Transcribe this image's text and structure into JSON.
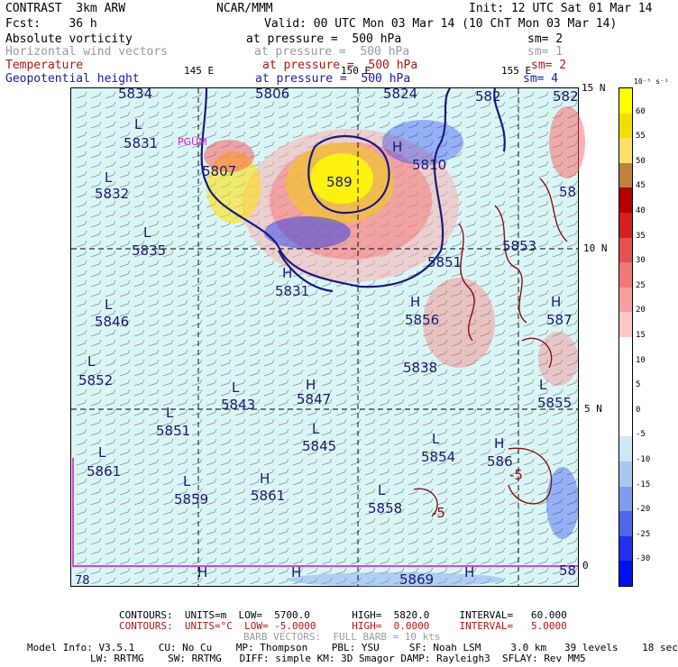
{
  "header": {
    "product": "CONTRAST  3km ARW",
    "fcst": "Fcst:    36 h",
    "center": "NCAR/MMM",
    "init": "Init: 12 UTC Sat 01 Mar 14",
    "valid": "Valid: 00 UTC Mon 03 Mar 14 (10 ChT Mon 03 Mar 14)"
  },
  "fields": [
    {
      "name": "Absolute vorticity",
      "level": "at pressure =  500 hPa",
      "smooth": "sm= 2",
      "color": "#000000"
    },
    {
      "name": "Horizontal wind vectors",
      "level": "at pressure =  500 hPa",
      "smooth": "sm= 1",
      "color": "#9a9a9a"
    },
    {
      "name": "Temperature",
      "level": "at pressure =  500 hPa",
      "smooth": "sm= 2",
      "color": "#b01515"
    },
    {
      "name": "Geopotential height",
      "level": "at pressure =  500 hPa",
      "smooth": "sm= 4",
      "color": "#1a1aa6"
    }
  ],
  "map": {
    "lon_labels": [
      "145 E",
      "150 E",
      "155 E"
    ],
    "lat_labels": [
      "15 N",
      "10 N",
      "5 N",
      "0"
    ],
    "corner_label": "78",
    "place_label": "PGUM",
    "geo_labels": [
      {
        "text": "5834"
      },
      {
        "text": "L"
      },
      {
        "text": "5831"
      },
      {
        "text": "L"
      },
      {
        "text": "5832"
      },
      {
        "text": "5807"
      },
      {
        "text": "L"
      },
      {
        "text": "5835"
      },
      {
        "text": "L"
      },
      {
        "text": "5846"
      },
      {
        "text": "L"
      },
      {
        "text": "5852"
      },
      {
        "text": "L"
      },
      {
        "text": "5843"
      },
      {
        "text": "H"
      },
      {
        "text": "5847"
      },
      {
        "text": "L"
      },
      {
        "text": "5851"
      },
      {
        "text": "L"
      },
      {
        "text": "5845"
      },
      {
        "text": "L"
      },
      {
        "text": "5861"
      },
      {
        "text": "L"
      },
      {
        "text": "5859"
      },
      {
        "text": "H"
      },
      {
        "text": "5861"
      },
      {
        "text": "L"
      },
      {
        "text": "5858"
      },
      {
        "text": "L"
      },
      {
        "text": "5854"
      },
      {
        "text": "H"
      },
      {
        "text": "586"
      },
      {
        "text": "H"
      },
      {
        "text": "5831"
      },
      {
        "text": "5806"
      },
      {
        "text": "5824"
      },
      {
        "text": "582"
      },
      {
        "text": "H"
      },
      {
        "text": "5810"
      },
      {
        "text": "589"
      },
      {
        "text": "5853"
      },
      {
        "text": "5851"
      },
      {
        "text": "H"
      },
      {
        "text": "5856"
      },
      {
        "text": "5838"
      },
      {
        "text": "H"
      },
      {
        "text": "587"
      },
      {
        "text": "L"
      },
      {
        "text": "5855"
      },
      {
        "text": "H"
      },
      {
        "text": "H"
      },
      {
        "text": "H"
      },
      {
        "text": "5869"
      },
      {
        "text": "582"
      },
      {
        "text": "58"
      },
      {
        "text": "58"
      },
      {
        "text": "-5"
      },
      {
        "text": "-5"
      }
    ]
  },
  "colorbar": {
    "unit_label": "10⁻⁵ s⁻¹",
    "levels": [
      "60",
      "55",
      "50",
      "45",
      "40",
      "35",
      "30",
      "25",
      "20",
      "15",
      "10",
      "5",
      "0",
      "-5",
      "-10",
      "-15",
      "-20",
      "-25",
      "-30"
    ],
    "colors": [
      "#ffff00",
      "#f0e000",
      "#ffe066",
      "#c08040",
      "#b00000",
      "#d42020",
      "#e85050",
      "#f07878",
      "#f8a0a0",
      "#fcc8c8",
      "#ffffff",
      "#ffffff",
      "#ffffff",
      "#ffffff",
      "#cde7f5",
      "#a9c8ee",
      "#7f9cf0",
      "#4f66ee",
      "#2430ee",
      "#0010f0"
    ]
  },
  "footer": {
    "contours1": "CONTOURS:  UNITS=m  LOW=  5700.0       HIGH=  5820.0     INTERVAL=   60.000",
    "contours2": "CONTOURS:  UNITS=°C  LOW= -5.0000      HIGH=  0.0000     INTERVAL=   5.0000",
    "barb": "BARB VECTORS:  FULL BARB = 10 kts",
    "model1": "Model Info: V3.5.1    CU: No Cu    MP: Thompson    PBL: YSU     SF: Noah LSM     3.0 km   39 levels    18 sec",
    "model2": "LW: RRTMG    SW: RRTMG   DIFF: simple KM: 3D Smagor DAMP: Rayleigh3  SFLAY: Rev MM5"
  }
}
